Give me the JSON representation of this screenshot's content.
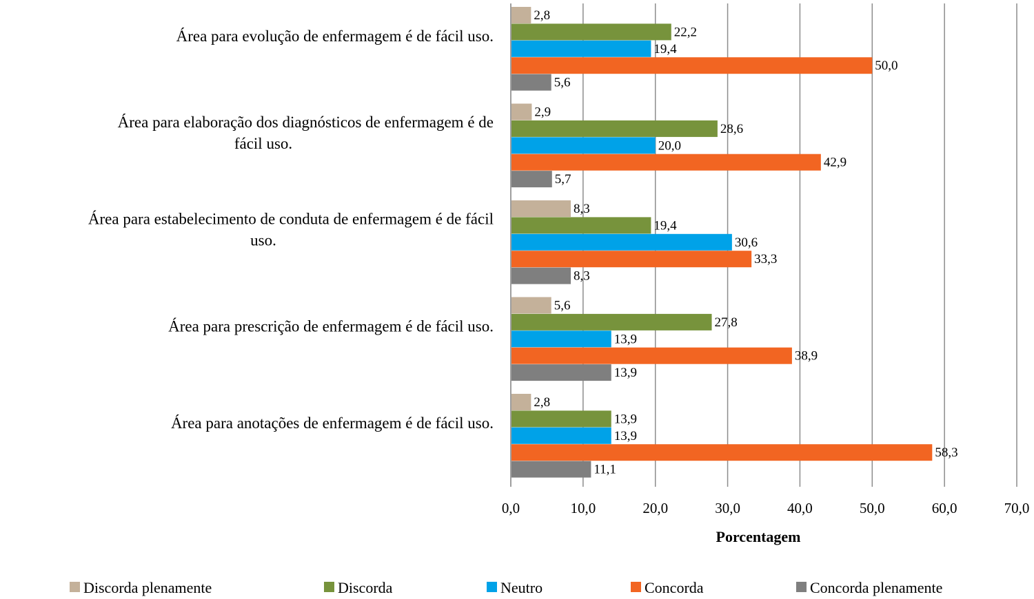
{
  "chart_data": {
    "type": "bar",
    "orientation": "horizontal",
    "xlabel": "Porcentagem",
    "xlim": [
      0,
      70
    ],
    "xticks": [
      0,
      10,
      20,
      30,
      40,
      50,
      60,
      70
    ],
    "xtick_labels": [
      "0,0",
      "10,0",
      "20,0",
      "30,0",
      "40,0",
      "50,0",
      "60,0",
      "70,0"
    ],
    "grid": "vertical",
    "legend_position": "bottom",
    "categories": [
      [
        "Área para evolução de enfermagem é de fácil uso."
      ],
      [
        "Área  para elaboração dos diagnósticos de enfermagem é de",
        "fácil uso."
      ],
      [
        "Área para estabelecimento de conduta de enfermagem é de fácil",
        "uso."
      ],
      [
        "Área  para prescrição de enfermagem é de fácil uso."
      ],
      [
        "Área para anotações de enfermagem  é de fácil uso."
      ]
    ],
    "series": [
      {
        "name": "Discorda plenamente",
        "color": "#C4B19A",
        "values": [
          2.8,
          2.9,
          8.3,
          5.6,
          2.8
        ],
        "labels": [
          "2,8",
          "2,9",
          "8,3",
          "5,6",
          "2,8"
        ]
      },
      {
        "name": "Discorda",
        "color": "#77933C",
        "values": [
          22.2,
          28.6,
          19.4,
          27.8,
          13.9
        ],
        "labels": [
          "22,2",
          "28,6",
          "19,4",
          "27,8",
          "13,9"
        ]
      },
      {
        "name": "Neutro",
        "color": "#00A2E8",
        "values": [
          19.4,
          20.0,
          30.6,
          13.9,
          13.9
        ],
        "labels": [
          "19,4",
          "20,0",
          "30,6",
          "13,9",
          "13,9"
        ]
      },
      {
        "name": "Concorda",
        "color": "#F26522",
        "values": [
          50.0,
          42.9,
          33.3,
          38.9,
          58.3
        ],
        "labels": [
          "50,0",
          "42,9",
          "33,3",
          "38,9",
          "58,3"
        ]
      },
      {
        "name": "Concorda plenamente",
        "color": "#7F7F7F",
        "values": [
          5.6,
          5.7,
          8.3,
          13.9,
          11.1
        ],
        "labels": [
          "5,6",
          "5,7",
          "8,3",
          "13,9",
          "11,1"
        ]
      }
    ]
  }
}
